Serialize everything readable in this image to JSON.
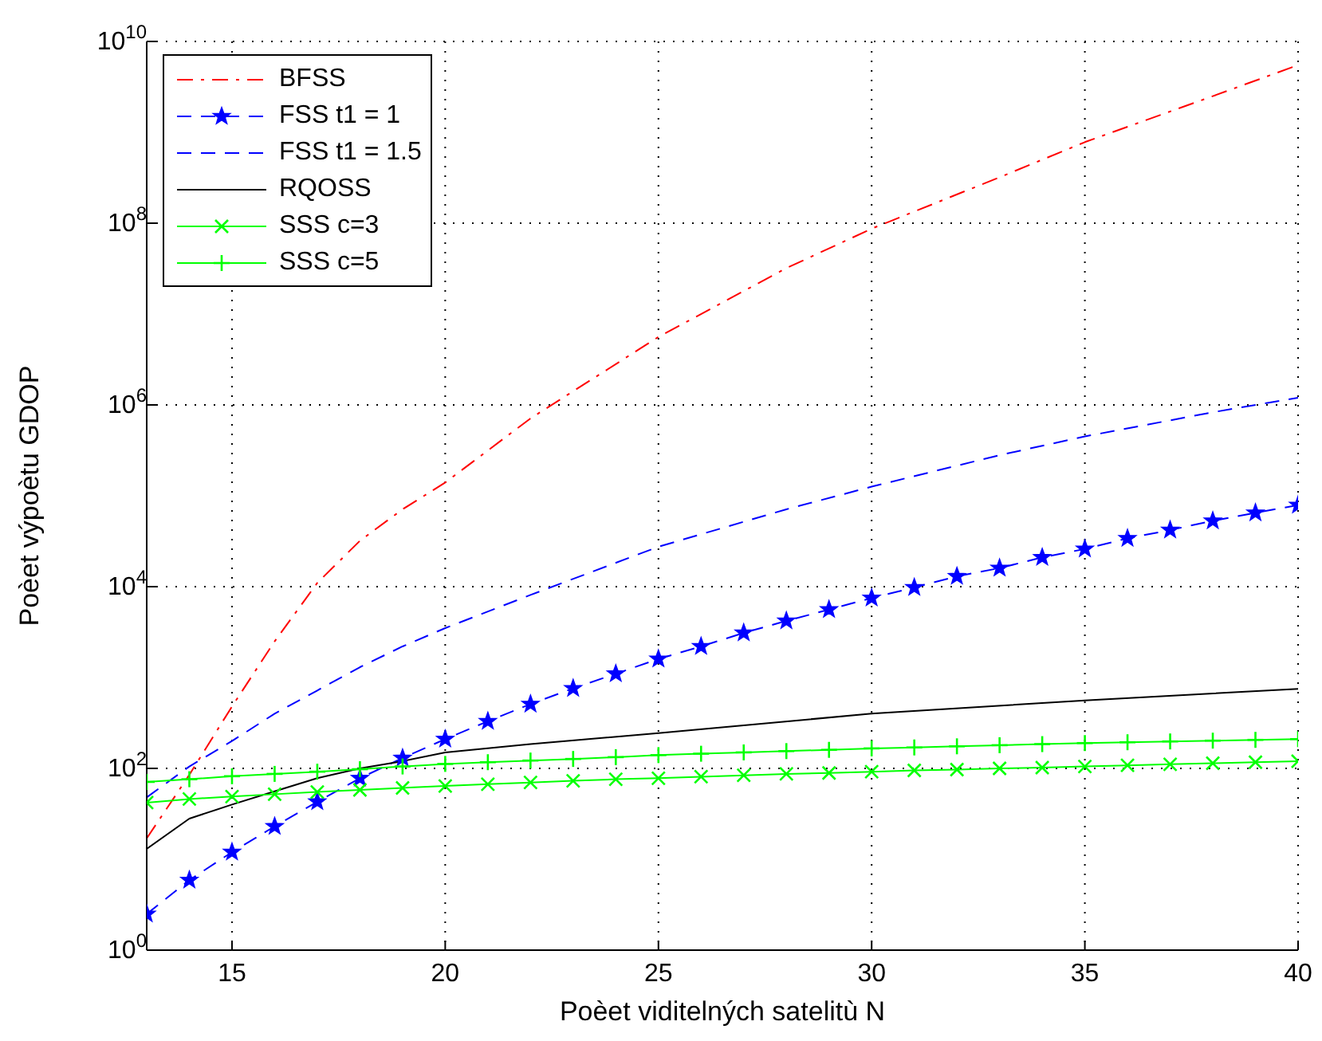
{
  "chart_data": {
    "type": "line",
    "xlabel": "Poèet viditelných satelitù N",
    "ylabel": "Poèet výpoètu GDOP",
    "xlim": [
      13,
      40
    ],
    "xticks": [
      15,
      20,
      25,
      30,
      35,
      40
    ],
    "ylim": [
      1,
      10000000000
    ],
    "yticks": [
      {
        "value": 1,
        "label": "10$^{0}$"
      },
      {
        "value": 100,
        "label": "10$^{2}$"
      },
      {
        "value": 10000,
        "label": "10$^{4}$"
      },
      {
        "value": 1000000,
        "label": "10$^{6}$"
      },
      {
        "value": 100000000,
        "label": "10$^{8}$"
      },
      {
        "value": 10000000000,
        "label": "10$^{10}$"
      }
    ],
    "log": "y",
    "grid": true,
    "legend": "top left",
    "series": [
      {
        "name": "BFSS",
        "color": "#ff0000",
        "line_style": "dashdot",
        "marker": "none",
        "x": [
          13,
          14,
          15,
          16,
          17,
          18,
          19,
          20,
          22,
          25,
          28,
          30,
          33,
          35,
          38,
          40
        ],
        "values": [
          17,
          85,
          480,
          2500,
          11000,
          32000,
          71000,
          140000,
          710000,
          5600000,
          32000000,
          87000000,
          320000000,
          780000000,
          2500000000,
          5500000000
        ]
      },
      {
        "name": "FSS t1 = 1",
        "color": "#0000ff",
        "line_style": "dashed",
        "marker": "star",
        "x": [
          13,
          14,
          15,
          16,
          17,
          18,
          19,
          20,
          21,
          22,
          23,
          24,
          25,
          26,
          27,
          28,
          29,
          30,
          31,
          32,
          33,
          34,
          35,
          36,
          37,
          38,
          39,
          40
        ],
        "values": [
          2.5,
          5.9,
          12,
          23,
          43,
          78,
          130,
          210,
          330,
          510,
          760,
          1100,
          1600,
          2200,
          3100,
          4200,
          5600,
          7500,
          9800,
          13000,
          16000,
          21000,
          26000,
          34000,
          42000,
          53000,
          65000,
          79000
        ]
      },
      {
        "name": "FSS t1 = 1.5",
        "color": "#0000ff",
        "line_style": "dashed",
        "marker": "none",
        "x": [
          13,
          14,
          15,
          16,
          17,
          18,
          19,
          20,
          22,
          25,
          28,
          30,
          33,
          35,
          38,
          40
        ],
        "values": [
          48,
          105,
          200,
          400,
          720,
          1300,
          2200,
          3500,
          8100,
          27500,
          71000,
          126000,
          280000,
          450000,
          830000,
          1200000
        ]
      },
      {
        "name": "RQOSS",
        "color": "#000000",
        "line_style": "solid",
        "marker": "none",
        "x": [
          13,
          14,
          15,
          16,
          17,
          18,
          19,
          20,
          22,
          25,
          30,
          35,
          40
        ],
        "values": [
          13,
          28,
          40,
          56,
          78,
          100,
          120,
          150,
          185,
          245,
          400,
          560,
          750
        ]
      },
      {
        "name": "SSS c=3",
        "color": "#00ff00",
        "line_style": "solid",
        "marker": "cross",
        "x": [
          13,
          14,
          15,
          16,
          17,
          18,
          19,
          20,
          21,
          22,
          23,
          24,
          25,
          26,
          27,
          28,
          29,
          30,
          31,
          32,
          33,
          34,
          35,
          36,
          37,
          38,
          39,
          40
        ],
        "values": [
          42,
          46,
          49,
          52,
          55,
          58,
          61,
          64,
          67,
          70,
          73,
          76,
          78,
          81,
          84,
          87,
          89,
          92,
          95,
          97,
          100,
          102,
          105,
          108,
          111,
          114,
          117,
          120
        ]
      },
      {
        "name": "SSS c=5",
        "color": "#00ff00",
        "line_style": "solid",
        "marker": "plus",
        "x": [
          13,
          14,
          15,
          16,
          17,
          18,
          19,
          20,
          21,
          22,
          23,
          24,
          25,
          26,
          27,
          28,
          29,
          30,
          31,
          32,
          33,
          34,
          35,
          36,
          37,
          38,
          39,
          40
        ],
        "values": [
          71,
          76,
          82,
          87,
          92,
          98,
          105,
          112,
          117,
          122,
          127,
          133,
          140,
          145,
          150,
          155,
          160,
          166,
          170,
          175,
          180,
          185,
          190,
          194,
          198,
          202,
          206,
          210
        ]
      }
    ]
  }
}
